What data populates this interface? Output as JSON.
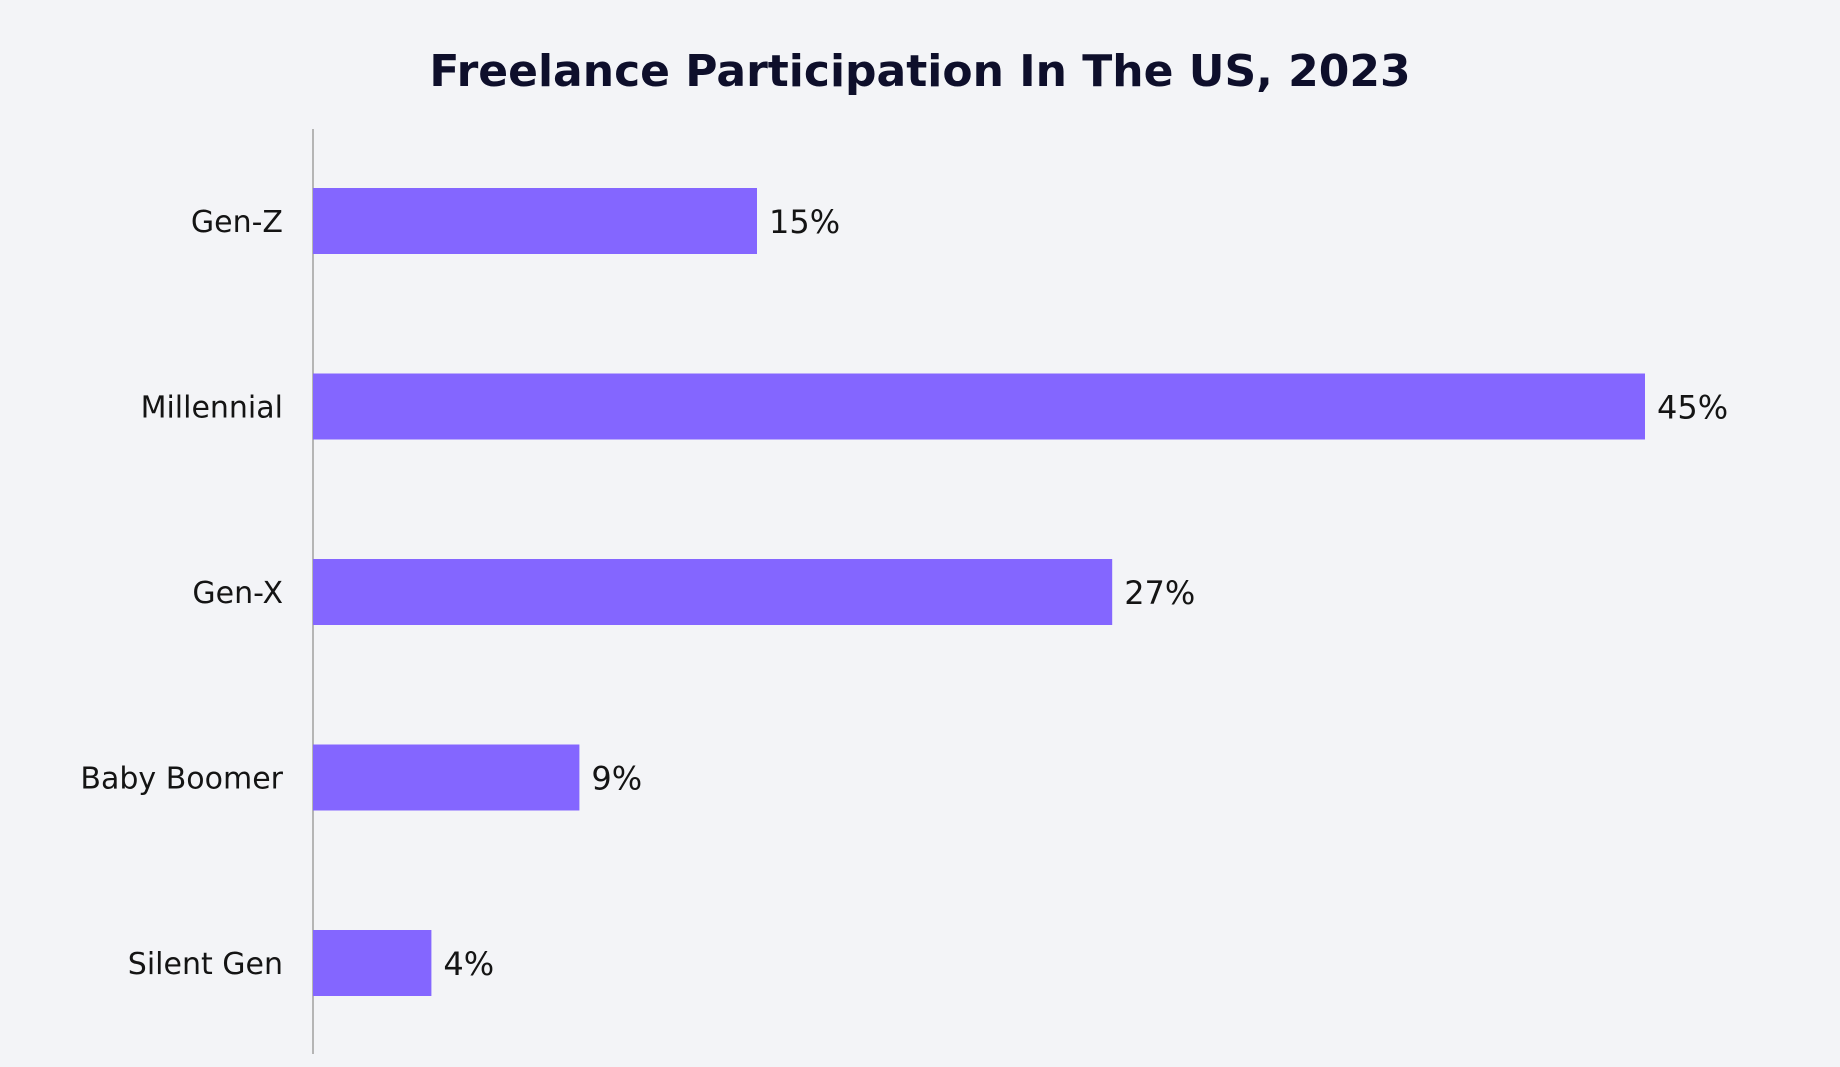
{
  "chart_data": {
    "type": "bar",
    "orientation": "horizontal",
    "title": "Freelance Participation In The US, 2023",
    "categories": [
      "Gen-Z",
      "Millennial",
      "Gen-X",
      "Baby Boomer",
      "Silent Gen"
    ],
    "values": [
      15,
      45,
      27,
      9,
      4
    ],
    "value_labels": [
      "15%",
      "45%",
      "27%",
      "9%",
      "4%"
    ],
    "xlim": [
      0,
      45
    ],
    "xlabel": "",
    "ylabel": "",
    "grid": false,
    "legend": "none",
    "colors": {
      "bar": "#8466ff",
      "axis": "#b5b5b5",
      "background": "#f3f4f7",
      "title": "#0e0f2b",
      "text": "#141414"
    }
  }
}
